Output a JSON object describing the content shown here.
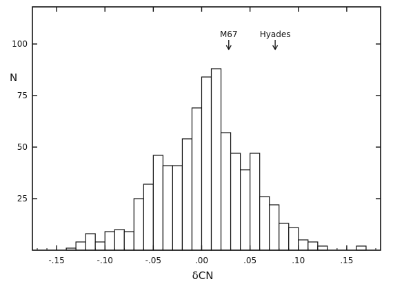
{
  "chart_data": {
    "type": "bar",
    "title": "",
    "xlabel": "δCN",
    "ylabel": "N",
    "xlim": [
      -0.175,
      0.185
    ],
    "ylim": [
      0,
      118
    ],
    "bin_width": 0.01,
    "grid": false,
    "bins": [
      {
        "x0": -0.14,
        "x1": -0.13,
        "value": 1
      },
      {
        "x0": -0.13,
        "x1": -0.12,
        "value": 4
      },
      {
        "x0": -0.12,
        "x1": -0.11,
        "value": 8
      },
      {
        "x0": -0.11,
        "x1": -0.1,
        "value": 4
      },
      {
        "x0": -0.1,
        "x1": -0.09,
        "value": 9
      },
      {
        "x0": -0.09,
        "x1": -0.08,
        "value": 10
      },
      {
        "x0": -0.08,
        "x1": -0.07,
        "value": 9
      },
      {
        "x0": -0.07,
        "x1": -0.06,
        "value": 25
      },
      {
        "x0": -0.06,
        "x1": -0.05,
        "value": 32
      },
      {
        "x0": -0.05,
        "x1": -0.04,
        "value": 46
      },
      {
        "x0": -0.04,
        "x1": -0.03,
        "value": 41
      },
      {
        "x0": -0.03,
        "x1": -0.02,
        "value": 41
      },
      {
        "x0": -0.02,
        "x1": -0.01,
        "value": 54
      },
      {
        "x0": -0.01,
        "x1": 0.0,
        "value": 69
      },
      {
        "x0": 0.0,
        "x1": 0.01,
        "value": 84
      },
      {
        "x0": 0.01,
        "x1": 0.02,
        "value": 88
      },
      {
        "x0": 0.02,
        "x1": 0.03,
        "value": 57
      },
      {
        "x0": 0.03,
        "x1": 0.04,
        "value": 47
      },
      {
        "x0": 0.04,
        "x1": 0.05,
        "value": 39
      },
      {
        "x0": 0.05,
        "x1": 0.06,
        "value": 47
      },
      {
        "x0": 0.06,
        "x1": 0.07,
        "value": 26
      },
      {
        "x0": 0.07,
        "x1": 0.08,
        "value": 22
      },
      {
        "x0": 0.08,
        "x1": 0.09,
        "value": 13
      },
      {
        "x0": 0.09,
        "x1": 0.1,
        "value": 11
      },
      {
        "x0": 0.1,
        "x1": 0.11,
        "value": 5
      },
      {
        "x0": 0.11,
        "x1": 0.12,
        "value": 4
      },
      {
        "x0": 0.12,
        "x1": 0.13,
        "value": 2
      },
      {
        "x0": 0.16,
        "x1": 0.17,
        "value": 2
      }
    ],
    "x_ticks": [
      {
        "value": -0.15,
        "label": "-.15"
      },
      {
        "value": -0.1,
        "label": "-.10"
      },
      {
        "value": -0.05,
        "label": "-.05"
      },
      {
        "value": 0.0,
        "label": ".00"
      },
      {
        "value": 0.05,
        "label": ".05"
      },
      {
        "value": 0.1,
        "label": ".10"
      },
      {
        "value": 0.15,
        "label": ".15"
      }
    ],
    "y_ticks": [
      {
        "value": 25,
        "label": "25"
      },
      {
        "value": 50,
        "label": "50"
      },
      {
        "value": 75,
        "label": "75"
      },
      {
        "value": 100,
        "label": "100"
      }
    ],
    "annotations": [
      {
        "label": "M67",
        "x": 0.028,
        "arrow": "down"
      },
      {
        "label": "Hyades",
        "x": 0.076,
        "arrow": "down"
      }
    ],
    "colors": {
      "bar_fill": "#ffffff",
      "stroke": "#111111"
    }
  }
}
